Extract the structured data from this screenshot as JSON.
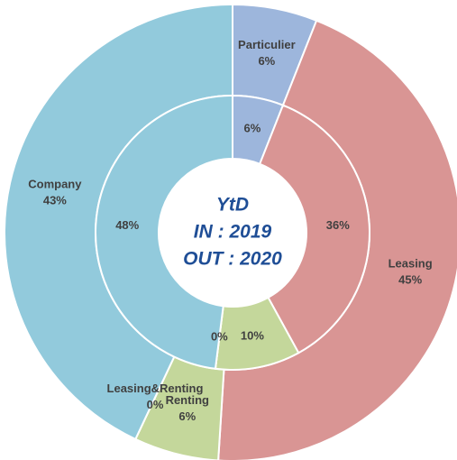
{
  "chart_data": {
    "type": "donut",
    "annotations": [
      "YtD",
      "IN : 2019",
      "OUT : 2020"
    ],
    "categories": [
      "Particulier",
      "Leasing",
      "Renting",
      "Leasing&Renting",
      "Company"
    ],
    "colors": [
      "#9db6dc",
      "#d99594",
      "#c4d79b",
      "#8064a2",
      "#92cadc"
    ],
    "series": [
      {
        "values": [
          6,
          45,
          6,
          0,
          43
        ],
        "value_labels": [
          "6%",
          "45%",
          "6%",
          "0%",
          "43%"
        ]
      },
      {
        "values": [
          6,
          36,
          10,
          0,
          48
        ],
        "value_labels": [
          "6%",
          "36%",
          "10%",
          "0%",
          "48%"
        ]
      }
    ]
  }
}
